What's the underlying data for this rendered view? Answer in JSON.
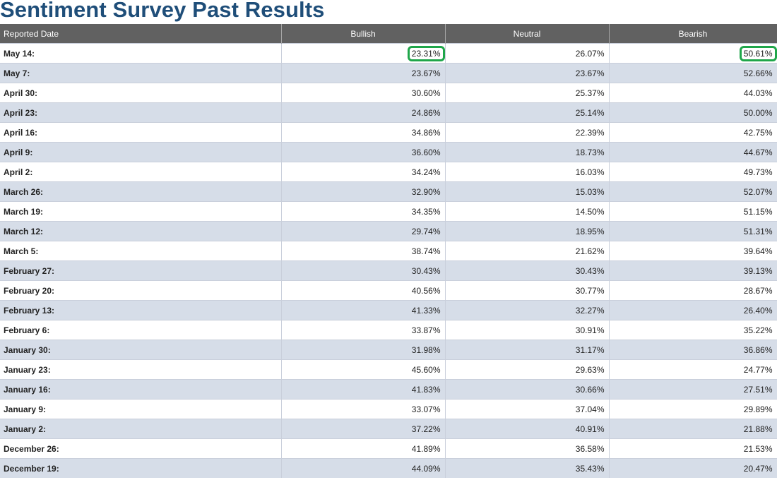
{
  "title": "Sentiment Survey Past Results",
  "columns": [
    "Reported Date",
    "Bullish",
    "Neutral",
    "Bearish"
  ],
  "highlight_color": "#1fa64a",
  "rows": [
    {
      "date": "May 14:",
      "bullish": "23.31%",
      "neutral": "26.07%",
      "bearish": "50.61%",
      "highlighted": [
        "bullish",
        "bearish"
      ]
    },
    {
      "date": "May 7:",
      "bullish": "23.67%",
      "neutral": "23.67%",
      "bearish": "52.66%"
    },
    {
      "date": "April 30:",
      "bullish": "30.60%",
      "neutral": "25.37%",
      "bearish": "44.03%"
    },
    {
      "date": "April 23:",
      "bullish": "24.86%",
      "neutral": "25.14%",
      "bearish": "50.00%"
    },
    {
      "date": "April 16:",
      "bullish": "34.86%",
      "neutral": "22.39%",
      "bearish": "42.75%"
    },
    {
      "date": "April 9:",
      "bullish": "36.60%",
      "neutral": "18.73%",
      "bearish": "44.67%"
    },
    {
      "date": "April 2:",
      "bullish": "34.24%",
      "neutral": "16.03%",
      "bearish": "49.73%"
    },
    {
      "date": "March 26:",
      "bullish": "32.90%",
      "neutral": "15.03%",
      "bearish": "52.07%"
    },
    {
      "date": "March 19:",
      "bullish": "34.35%",
      "neutral": "14.50%",
      "bearish": "51.15%"
    },
    {
      "date": "March 12:",
      "bullish": "29.74%",
      "neutral": "18.95%",
      "bearish": "51.31%"
    },
    {
      "date": "March 5:",
      "bullish": "38.74%",
      "neutral": "21.62%",
      "bearish": "39.64%"
    },
    {
      "date": "February 27:",
      "bullish": "30.43%",
      "neutral": "30.43%",
      "bearish": "39.13%"
    },
    {
      "date": "February 20:",
      "bullish": "40.56%",
      "neutral": "30.77%",
      "bearish": "28.67%"
    },
    {
      "date": "February 13:",
      "bullish": "41.33%",
      "neutral": "32.27%",
      "bearish": "26.40%"
    },
    {
      "date": "February 6:",
      "bullish": "33.87%",
      "neutral": "30.91%",
      "bearish": "35.22%"
    },
    {
      "date": "January 30:",
      "bullish": "31.98%",
      "neutral": "31.17%",
      "bearish": "36.86%"
    },
    {
      "date": "January 23:",
      "bullish": "45.60%",
      "neutral": "29.63%",
      "bearish": "24.77%"
    },
    {
      "date": "January 16:",
      "bullish": "41.83%",
      "neutral": "30.66%",
      "bearish": "27.51%"
    },
    {
      "date": "January 9:",
      "bullish": "33.07%",
      "neutral": "37.04%",
      "bearish": "29.89%"
    },
    {
      "date": "January 2:",
      "bullish": "37.22%",
      "neutral": "40.91%",
      "bearish": "21.88%"
    },
    {
      "date": "December 26:",
      "bullish": "41.89%",
      "neutral": "36.58%",
      "bearish": "21.53%"
    },
    {
      "date": "December 19:",
      "bullish": "44.09%",
      "neutral": "35.43%",
      "bearish": "20.47%"
    }
  ]
}
